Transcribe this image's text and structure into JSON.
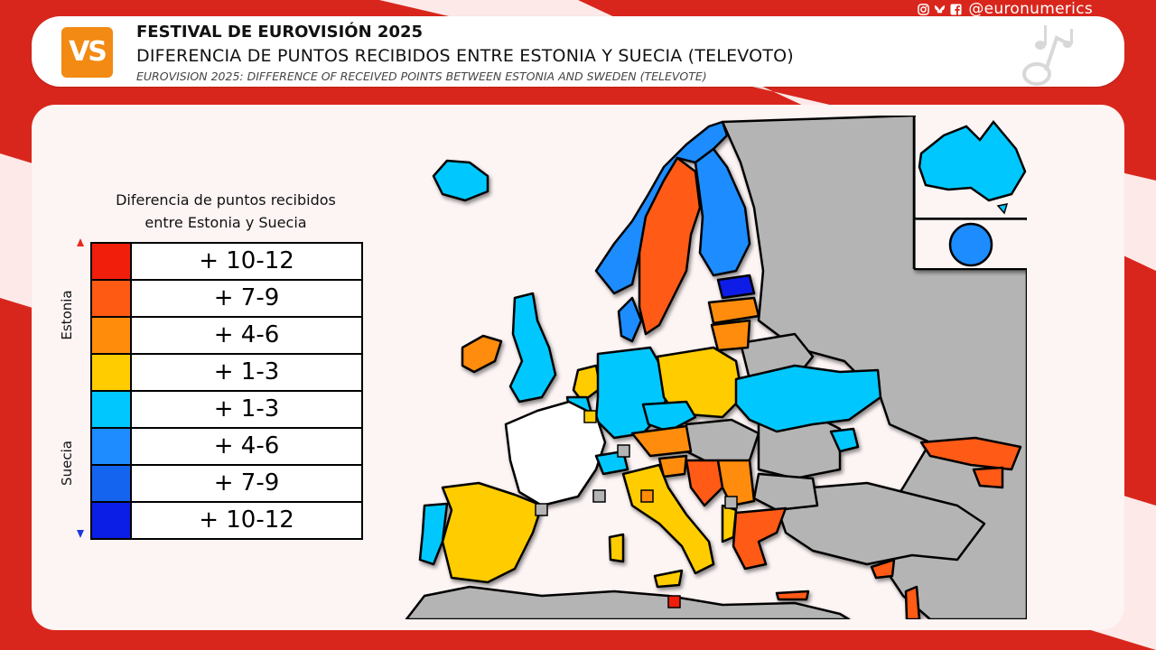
{
  "header": {
    "logo_text": "VS",
    "title_es": "FESTIVAL DE EUROVISIÓN 2025",
    "subtitle_es": "DIFERENCIA DE PUNTOS RECIBIDOS ENTRE ESTONIA Y SUECIA (TELEVOTO)",
    "subtitle_en": "EUROVISION 2025: DIFFERENCE OF RECEIVED POINTS BETWEEN ESTONIA AND SWEDEN (TELEVOTE)",
    "social_handle": "@euronumerics",
    "social_icons": [
      "instagram-icon",
      "bluesky-icon",
      "facebook-icon"
    ]
  },
  "legend": {
    "title_line1": "Diferencia de puntos recibidos",
    "title_line2": "entre Estonia y Suecia",
    "side_label_top": "Estonia",
    "side_label_bottom": "Suecia",
    "rows": [
      {
        "label": "+ 10-12",
        "color": "#f01e0a",
        "side": "Estonia"
      },
      {
        "label": "+ 7-9",
        "color": "#ff5a14",
        "side": "Estonia"
      },
      {
        "label": "+ 4-6",
        "color": "#ff8c0a",
        "side": "Estonia"
      },
      {
        "label": "+ 1-3",
        "color": "#ffcc00",
        "side": "Estonia"
      },
      {
        "label": "+ 1-3",
        "color": "#00c8ff",
        "side": "Suecia"
      },
      {
        "label": "+ 4-6",
        "color": "#1e8cff",
        "side": "Suecia"
      },
      {
        "label": "+ 7-9",
        "color": "#1464f0",
        "side": "Suecia"
      },
      {
        "label": "+ 10-12",
        "color": "#0a1ee6",
        "side": "Suecia"
      }
    ]
  },
  "map": {
    "colors": {
      "no_vote": "#b4b4b4",
      "participant_self": "#ffffff",
      "sea": "#fdf4f4",
      "border": "#000000"
    },
    "regions": [
      {
        "name": "Iceland",
        "category": "Suecia +1-3"
      },
      {
        "name": "Norway",
        "category": "Suecia +4-6"
      },
      {
        "name": "Sweden",
        "category": "Estonia +7-9"
      },
      {
        "name": "Finland",
        "category": "Suecia +4-6"
      },
      {
        "name": "Estonia",
        "category": "Suecia +10-12"
      },
      {
        "name": "Latvia",
        "category": "Estonia +4-6"
      },
      {
        "name": "Lithuania",
        "category": "Estonia +7-9"
      },
      {
        "name": "Denmark",
        "category": "Suecia +4-6"
      },
      {
        "name": "Ireland",
        "category": "Estonia +4-6"
      },
      {
        "name": "United Kingdom",
        "category": "Suecia +1-3"
      },
      {
        "name": "Netherlands",
        "category": "Estonia +1-3"
      },
      {
        "name": "Belgium",
        "category": "Suecia +1-3"
      },
      {
        "name": "Luxembourg",
        "category": "Estonia +1-3"
      },
      {
        "name": "France",
        "category": "self"
      },
      {
        "name": "Germany",
        "category": "Suecia +1-3"
      },
      {
        "name": "Poland",
        "category": "Estonia +1-3"
      },
      {
        "name": "Ukraine",
        "category": "Suecia +1-3"
      },
      {
        "name": "Czechia",
        "category": "Suecia +1-3"
      },
      {
        "name": "Austria",
        "category": "Estonia +4-6"
      },
      {
        "name": "Switzerland",
        "category": "Suecia +1-3"
      },
      {
        "name": "Italy",
        "category": "Estonia +1-3"
      },
      {
        "name": "San Marino",
        "category": "Estonia +4-6"
      },
      {
        "name": "Slovenia",
        "category": "Estonia +4-6"
      },
      {
        "name": "Croatia",
        "category": "Estonia +7-9"
      },
      {
        "name": "Serbia",
        "category": "Estonia +4-6"
      },
      {
        "name": "Montenegro",
        "category": "Estonia +4-6"
      },
      {
        "name": "Albania",
        "category": "Estonia +1-3"
      },
      {
        "name": "Greece",
        "category": "Estonia +7-9"
      },
      {
        "name": "Cyprus",
        "category": "Estonia +7-9"
      },
      {
        "name": "Malta",
        "category": "Estonia +1-3"
      },
      {
        "name": "Spain",
        "category": "Estonia +1-3"
      },
      {
        "name": "Portugal",
        "category": "Suecia +1-3"
      },
      {
        "name": "Moldova",
        "category": "Suecia +1-3"
      },
      {
        "name": "Georgia",
        "category": "Estonia +7-9"
      },
      {
        "name": "Armenia",
        "category": "Estonia +7-9"
      },
      {
        "name": "Israel",
        "category": "Estonia +7-9"
      },
      {
        "name": "Australia",
        "category": "Suecia +1-3"
      },
      {
        "name": "Rest of the World",
        "category": "Suecia +4-6"
      },
      {
        "name": "Monaco",
        "category": "no vote"
      },
      {
        "name": "Liechtenstein",
        "category": "no vote"
      },
      {
        "name": "Andorra",
        "category": "no vote"
      },
      {
        "name": "Vatican",
        "category": "no vote"
      },
      {
        "name": "Gozo",
        "category": "Estonia +10-12"
      }
    ]
  }
}
